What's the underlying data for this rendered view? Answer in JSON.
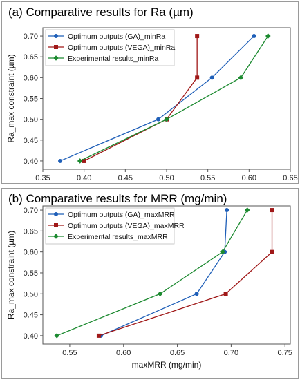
{
  "colors": {
    "ga": "#1f5fb8",
    "vega": "#a01818",
    "exp": "#1c8a30",
    "axis": "#555555",
    "frame": "#9a9a9a"
  },
  "chart_data": [
    {
      "type": "line",
      "panel_title": "(a) Comparative results for Ra (µm)",
      "xlabel": "",
      "ylabel": "Ra_max constraint (µm)",
      "xlim": [
        0.35,
        0.65
      ],
      "ylim": [
        0.38,
        0.72
      ],
      "xticks": [
        "0.35",
        "0.40",
        "0.45",
        "0.50",
        "0.55",
        "0.60",
        "0.65"
      ],
      "xtick_values": [
        0.35,
        0.4,
        0.45,
        0.5,
        0.55,
        0.6,
        0.65
      ],
      "yticks": [
        "0.40",
        "0.45",
        "0.50",
        "0.55",
        "0.60",
        "0.65",
        "0.70"
      ],
      "ytick_values": [
        0.4,
        0.45,
        0.5,
        0.55,
        0.6,
        0.65,
        0.7
      ],
      "legend_position": "top-left",
      "series": [
        {
          "name": "Optimum outputs (GA)_minRa",
          "marker": "circle",
          "color_key": "ga",
          "x": [
            0.371,
            0.49,
            0.555,
            0.606
          ],
          "y": [
            0.4,
            0.5,
            0.6,
            0.7
          ]
        },
        {
          "name": "Optimum outputs (VEGA)_minRa",
          "marker": "square",
          "color_key": "vega",
          "x": [
            0.4,
            0.5,
            0.537,
            0.537
          ],
          "y": [
            0.4,
            0.5,
            0.6,
            0.7
          ]
        },
        {
          "name": "Experimental results_minRa",
          "marker": "diamond",
          "color_key": "exp",
          "x": [
            0.395,
            0.5,
            0.59,
            0.623
          ],
          "y": [
            0.4,
            0.5,
            0.6,
            0.7
          ]
        }
      ]
    },
    {
      "type": "line",
      "panel_title": "(b) Comparative results for MRR (mg/min)",
      "xlabel": "maxMRR (mg/min)",
      "ylabel": "Ra_max constraint (µm)",
      "xlim": [
        0.525,
        0.755
      ],
      "ylim": [
        0.38,
        0.71
      ],
      "xticks": [
        "0.55",
        "0.60",
        "0.65",
        "0.70",
        "0.75"
      ],
      "xtick_values": [
        0.55,
        0.6,
        0.65,
        0.7,
        0.75
      ],
      "yticks": [
        "0.40",
        "0.45",
        "0.50",
        "0.55",
        "0.60",
        "0.65",
        "0.70"
      ],
      "ytick_values": [
        0.4,
        0.45,
        0.5,
        0.55,
        0.6,
        0.65,
        0.7
      ],
      "legend_position": "top-left",
      "series": [
        {
          "name": "Optimum outputs (GA)_maxMRR",
          "marker": "circle",
          "color_key": "ga",
          "x": [
            0.579,
            0.668,
            0.694,
            0.696
          ],
          "y": [
            0.4,
            0.5,
            0.6,
            0.7
          ]
        },
        {
          "name": "Optimum outputs (VEGA)_maxMRR",
          "marker": "square",
          "color_key": "vega",
          "x": [
            0.577,
            0.695,
            0.738,
            0.738
          ],
          "y": [
            0.4,
            0.5,
            0.6,
            0.7
          ]
        },
        {
          "name": "Experimental results_maxMRR",
          "marker": "diamond",
          "color_key": "exp",
          "x": [
            0.538,
            0.634,
            0.692,
            0.715
          ],
          "y": [
            0.4,
            0.5,
            0.6,
            0.7
          ]
        }
      ]
    }
  ]
}
